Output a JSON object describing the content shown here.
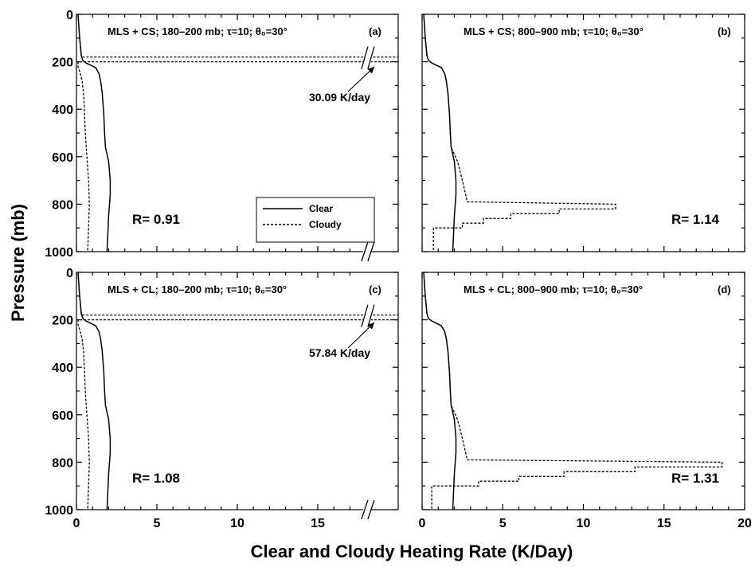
{
  "chart_data": {
    "type": "line",
    "xlabel": "Clear and Cloudy Heating Rate (K/Day)",
    "ylabel": "Pressure (mb)",
    "xlim": [
      0,
      20
    ],
    "ylim": [
      1000,
      0
    ],
    "y_inverted": true,
    "x_ticks": [
      "0",
      "5",
      "10",
      "15",
      "20"
    ],
    "y_ticks": [
      "0",
      "200",
      "400",
      "600",
      "800",
      "1000"
    ],
    "legend": {
      "placement": "inside panel (a), center-right",
      "entries": [
        "Clear",
        "Cloudy"
      ]
    },
    "panels": [
      {
        "id": "a",
        "title": "MLS + CS; 180–200 mb; τ=10; θ₀=30°",
        "label": "(a)",
        "r_text": "R= 0.91",
        "annotation": "30.09 K/day",
        "axis_break": true,
        "series": [
          {
            "name": "Clear",
            "style": "solid",
            "points": [
              [
                0.1,
                0
              ],
              [
                0.2,
                100
              ],
              [
                0.3,
                175
              ],
              [
                0.4,
                195
              ],
              [
                0.6,
                205
              ],
              [
                0.9,
                215
              ],
              [
                1.2,
                225
              ],
              [
                1.4,
                250
              ],
              [
                1.5,
                280
              ],
              [
                1.6,
                330
              ],
              [
                1.7,
                420
              ],
              [
                1.75,
                500
              ],
              [
                1.8,
                560
              ],
              [
                2.0,
                620
              ],
              [
                2.1,
                700
              ],
              [
                2.1,
                760
              ],
              [
                2.0,
                850
              ],
              [
                1.9,
                1000
              ]
            ]
          },
          {
            "name": "Cloudy",
            "style": "dashed",
            "points": [
              [
                0.1,
                0
              ],
              [
                0.2,
                100
              ],
              [
                0.3,
                170
              ],
              [
                0.3,
                180
              ],
              [
                30.09,
                180
              ],
              [
                30.09,
                200
              ],
              [
                0.1,
                200
              ],
              [
                0.1,
                220
              ],
              [
                0.2,
                240
              ],
              [
                0.35,
                280
              ],
              [
                0.45,
                340
              ],
              [
                0.5,
                420
              ],
              [
                0.55,
                500
              ],
              [
                0.65,
                600
              ],
              [
                0.75,
                700
              ],
              [
                0.8,
                800
              ],
              [
                0.75,
                900
              ],
              [
                0.7,
                1000
              ]
            ]
          }
        ]
      },
      {
        "id": "b",
        "title": "MLS + CS; 800–900 mb; τ=10; θ₀=30°",
        "label": "(b)",
        "r_text": "R= 1.14",
        "series": [
          {
            "name": "Clear",
            "style": "solid",
            "points": [
              [
                0.1,
                0
              ],
              [
                0.2,
                100
              ],
              [
                0.3,
                175
              ],
              [
                0.4,
                195
              ],
              [
                0.6,
                205
              ],
              [
                0.9,
                215
              ],
              [
                1.2,
                225
              ],
              [
                1.4,
                250
              ],
              [
                1.5,
                280
              ],
              [
                1.6,
                330
              ],
              [
                1.7,
                420
              ],
              [
                1.75,
                500
              ],
              [
                1.8,
                560
              ],
              [
                2.0,
                620
              ],
              [
                2.1,
                700
              ],
              [
                2.1,
                760
              ],
              [
                2.0,
                850
              ],
              [
                1.9,
                1000
              ]
            ]
          },
          {
            "name": "Cloudy",
            "style": "dashed",
            "points": [
              [
                0.1,
                0
              ],
              [
                0.2,
                100
              ],
              [
                0.3,
                175
              ],
              [
                0.4,
                195
              ],
              [
                0.6,
                205
              ],
              [
                0.9,
                215
              ],
              [
                1.2,
                225
              ],
              [
                1.4,
                250
              ],
              [
                1.5,
                280
              ],
              [
                1.6,
                330
              ],
              [
                1.7,
                420
              ],
              [
                1.75,
                500
              ],
              [
                1.8,
                560
              ],
              [
                2.2,
                620
              ],
              [
                2.5,
                700
              ],
              [
                2.8,
                790
              ],
              [
                12.0,
                800
              ],
              [
                12.0,
                820
              ],
              [
                8.5,
                820
              ],
              [
                8.5,
                840
              ],
              [
                5.5,
                840
              ],
              [
                5.5,
                860
              ],
              [
                3.8,
                860
              ],
              [
                3.8,
                880
              ],
              [
                2.5,
                880
              ],
              [
                2.5,
                900
              ],
              [
                0.7,
                900
              ],
              [
                0.7,
                1000
              ]
            ]
          }
        ]
      },
      {
        "id": "c",
        "title": "MLS + CL; 180–200 mb; τ=10; θ₀=30°",
        "label": "(c)",
        "r_text": "R= 1.08",
        "annotation": "57.84 K/day",
        "axis_break": true,
        "series": [
          {
            "name": "Clear",
            "style": "solid",
            "points": [
              [
                0.1,
                0
              ],
              [
                0.2,
                100
              ],
              [
                0.3,
                175
              ],
              [
                0.4,
                195
              ],
              [
                0.6,
                205
              ],
              [
                0.9,
                215
              ],
              [
                1.2,
                225
              ],
              [
                1.4,
                250
              ],
              [
                1.5,
                280
              ],
              [
                1.6,
                330
              ],
              [
                1.7,
                420
              ],
              [
                1.75,
                500
              ],
              [
                1.8,
                560
              ],
              [
                2.0,
                620
              ],
              [
                2.1,
                700
              ],
              [
                2.1,
                760
              ],
              [
                2.0,
                850
              ],
              [
                1.9,
                1000
              ]
            ]
          },
          {
            "name": "Cloudy",
            "style": "dashed",
            "points": [
              [
                0.1,
                0
              ],
              [
                0.2,
                100
              ],
              [
                0.3,
                170
              ],
              [
                0.3,
                180
              ],
              [
                57.84,
                180
              ],
              [
                57.84,
                200
              ],
              [
                0.1,
                200
              ],
              [
                0.1,
                220
              ],
              [
                0.2,
                240
              ],
              [
                0.35,
                280
              ],
              [
                0.45,
                340
              ],
              [
                0.5,
                420
              ],
              [
                0.55,
                500
              ],
              [
                0.65,
                600
              ],
              [
                0.75,
                700
              ],
              [
                0.8,
                800
              ],
              [
                0.75,
                900
              ],
              [
                0.7,
                1000
              ]
            ]
          }
        ]
      },
      {
        "id": "d",
        "title": "MLS + CL; 800–900 mb; τ=10; θ₀=30°",
        "label": "(d)",
        "r_text": "R= 1.31",
        "series": [
          {
            "name": "Clear",
            "style": "solid",
            "points": [
              [
                0.1,
                0
              ],
              [
                0.2,
                100
              ],
              [
                0.3,
                175
              ],
              [
                0.4,
                195
              ],
              [
                0.6,
                205
              ],
              [
                0.9,
                215
              ],
              [
                1.2,
                225
              ],
              [
                1.4,
                250
              ],
              [
                1.5,
                280
              ],
              [
                1.6,
                330
              ],
              [
                1.7,
                420
              ],
              [
                1.75,
                500
              ],
              [
                1.8,
                560
              ],
              [
                2.0,
                620
              ],
              [
                2.1,
                700
              ],
              [
                2.1,
                760
              ],
              [
                2.0,
                850
              ],
              [
                1.9,
                1000
              ]
            ]
          },
          {
            "name": "Cloudy",
            "style": "dashed",
            "points": [
              [
                0.1,
                0
              ],
              [
                0.2,
                100
              ],
              [
                0.3,
                175
              ],
              [
                0.4,
                195
              ],
              [
                0.6,
                205
              ],
              [
                0.9,
                215
              ],
              [
                1.2,
                225
              ],
              [
                1.4,
                250
              ],
              [
                1.5,
                280
              ],
              [
                1.6,
                330
              ],
              [
                1.7,
                420
              ],
              [
                1.75,
                500
              ],
              [
                1.8,
                560
              ],
              [
                2.2,
                620
              ],
              [
                2.5,
                700
              ],
              [
                2.8,
                790
              ],
              [
                18.6,
                800
              ],
              [
                18.6,
                820
              ],
              [
                13.2,
                820
              ],
              [
                13.2,
                840
              ],
              [
                8.8,
                840
              ],
              [
                8.8,
                860
              ],
              [
                6.0,
                860
              ],
              [
                6.0,
                880
              ],
              [
                3.5,
                880
              ],
              [
                3.5,
                900
              ],
              [
                0.6,
                900
              ],
              [
                0.6,
                1000
              ]
            ]
          }
        ]
      }
    ]
  }
}
